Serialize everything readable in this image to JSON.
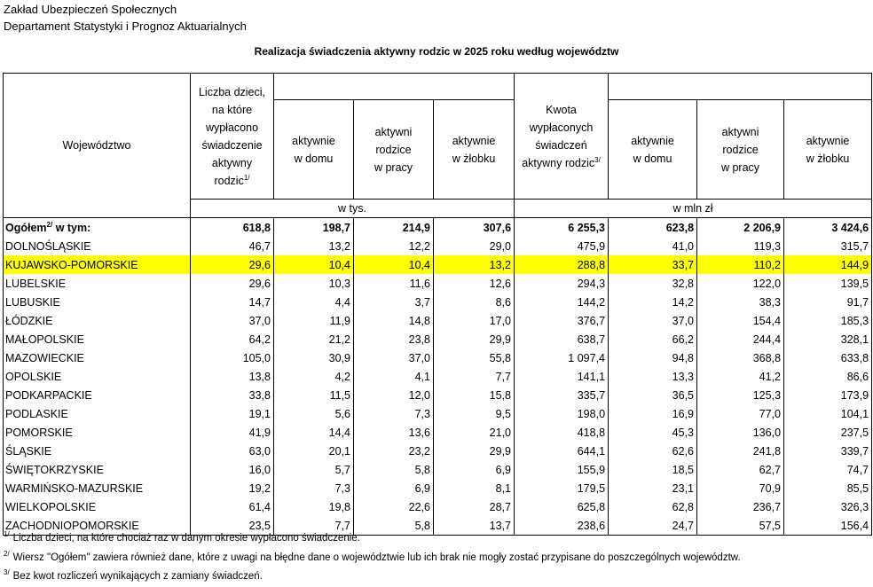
{
  "header": {
    "org": "Zakład Ubezpieczeń Społecznych",
    "dept": "Departament Statystyki i Prognoz Aktuarialnych",
    "title": "Realizacja świadczenia aktywny rodzic w 2025 roku według województw"
  },
  "table": {
    "region_header": "Województwo",
    "groups": [
      {
        "main": {
          "lines": [
            "Liczba dzieci,",
            "na które",
            "wypłacono",
            "świadczenie",
            "aktywny",
            "rodzic"
          ],
          "sup": "1/"
        },
        "subs": [
          [
            "aktywnie",
            "w domu"
          ],
          [
            "aktywni",
            "rodzice",
            "w pracy"
          ],
          [
            "aktywnie",
            "w żłobku"
          ]
        ],
        "unit": "w tys."
      },
      {
        "main": {
          "lines": [
            "Kwota",
            "wypłaconych",
            "świadczeń",
            "aktywny rodzic"
          ],
          "sup": "3/"
        },
        "subs": [
          [
            "aktywnie",
            "w domu"
          ],
          [
            "aktywni",
            "rodzice",
            "w pracy"
          ],
          [
            "aktywnie",
            "w żłobku"
          ]
        ],
        "unit": "w mln zł"
      }
    ],
    "rows": [
      {
        "label": "Ogółem",
        "sup": "2/",
        "suffix": " w tym:",
        "bold": true,
        "cells": [
          "618,8",
          "198,7",
          "214,9",
          "307,6",
          "6 255,3",
          "623,8",
          "2 206,9",
          "3 424,6"
        ]
      },
      {
        "label": "DOLNOŚLĄSKIE",
        "cells": [
          "46,7",
          "13,2",
          "12,2",
          "29,0",
          "475,9",
          "41,0",
          "119,3",
          "315,7"
        ]
      },
      {
        "label": "KUJAWSKO-POMORSKIE",
        "highlight": true,
        "cells": [
          "29,6",
          "10,4",
          "10,4",
          "13,2",
          "288,8",
          "33,7",
          "110,2",
          "144,9"
        ]
      },
      {
        "label": "LUBELSKIE",
        "cells": [
          "29,6",
          "10,3",
          "11,6",
          "12,6",
          "294,3",
          "32,8",
          "122,0",
          "139,5"
        ]
      },
      {
        "label": "LUBUSKIE",
        "cells": [
          "14,7",
          "4,4",
          "3,7",
          "8,6",
          "144,2",
          "14,2",
          "38,3",
          "91,7"
        ]
      },
      {
        "label": "ŁÓDZKIE",
        "cells": [
          "37,0",
          "11,9",
          "14,8",
          "17,0",
          "376,7",
          "37,0",
          "154,4",
          "185,3"
        ]
      },
      {
        "label": "MAŁOPOLSKIE",
        "cells": [
          "64,2",
          "21,2",
          "23,8",
          "29,9",
          "638,7",
          "66,2",
          "244,4",
          "328,1"
        ]
      },
      {
        "label": "MAZOWIECKIE",
        "cells": [
          "105,0",
          "30,9",
          "37,0",
          "55,8",
          "1 097,4",
          "94,8",
          "368,8",
          "633,8"
        ]
      },
      {
        "label": "OPOLSKIE",
        "cells": [
          "13,8",
          "4,2",
          "4,1",
          "7,7",
          "141,1",
          "13,3",
          "41,2",
          "86,6"
        ]
      },
      {
        "label": "PODKARPACKIE",
        "cells": [
          "33,8",
          "11,5",
          "12,0",
          "15,8",
          "335,7",
          "36,5",
          "125,3",
          "173,9"
        ]
      },
      {
        "label": "PODLASKIE",
        "cells": [
          "19,1",
          "5,6",
          "7,3",
          "9,5",
          "198,0",
          "16,9",
          "77,0",
          "104,1"
        ]
      },
      {
        "label": "POMORSKIE",
        "cells": [
          "41,9",
          "14,4",
          "13,6",
          "21,0",
          "418,8",
          "45,3",
          "136,0",
          "237,5"
        ]
      },
      {
        "label": "ŚLĄSKIE",
        "cells": [
          "63,0",
          "20,1",
          "23,2",
          "29,9",
          "644,1",
          "62,6",
          "241,8",
          "339,7"
        ]
      },
      {
        "label": "ŚWIĘTOKRZYSKIE",
        "cells": [
          "16,0",
          "5,7",
          "5,8",
          "6,9",
          "155,9",
          "18,5",
          "62,7",
          "74,7"
        ]
      },
      {
        "label": "WARMIŃSKO-MAZURSKIE",
        "cells": [
          "19,2",
          "7,3",
          "6,9",
          "8,1",
          "179,5",
          "23,1",
          "70,9",
          "85,5"
        ]
      },
      {
        "label": "WIELKOPOLSKIE",
        "cells": [
          "61,4",
          "19,8",
          "22,6",
          "28,7",
          "625,8",
          "62,8",
          "236,7",
          "326,3"
        ]
      },
      {
        "label": "ZACHODNIOPOMORSKIE",
        "cells": [
          "23,5",
          "7,7",
          "5,8",
          "13,7",
          "238,6",
          "24,7",
          "57,5",
          "156,4"
        ]
      }
    ]
  },
  "footnotes": [
    {
      "sup": "1/",
      "text": "Liczba dzieci, na które chociaż raz w danym okresie wypłacono świadczenie."
    },
    {
      "sup": "2/",
      "text": "Wiersz \"Ogółem\" zawiera również dane, które z uwagi na błędne dane o województwie lub ich brak nie mogły zostać przypisane do poszczególnych województw."
    },
    {
      "sup": "3/",
      "text": "Bez kwot rozliczeń wynikających z zamiany świadczeń."
    }
  ]
}
